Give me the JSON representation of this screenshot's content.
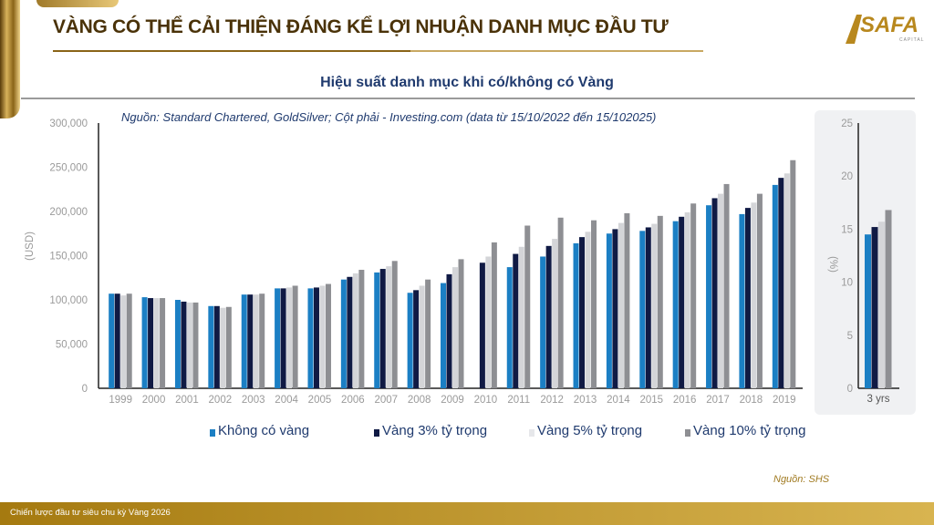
{
  "header": {
    "title": "VÀNG CÓ THỂ CẢI THIỆN ĐÁNG KỂ LỢI NHUẬN DANH MỤC ĐẦU TƯ",
    "logo_text": "SAFA",
    "logo_sub": "CAPITAL"
  },
  "subtitle": "Hiệu suất danh mục khi có/không có Vàng",
  "source_note": "Nguồn: Standard Chartered, GoldSilver; Cột phải - Investing.com (data từ 15/10/2022 đến 15/102025)",
  "footnote": "Nguồn: SHS",
  "footer": "Chiến lược đầu tư siêu chu kỳ Vàng 2026",
  "colors": [
    "#1b7fc4",
    "#101a44",
    "#d4d5d8",
    "#8e8f93"
  ],
  "chart_data": [
    {
      "type": "bar",
      "ylabel": "(USD)",
      "ylim": [
        0,
        300000
      ],
      "yticks": [
        "0",
        "50,000",
        "100,000",
        "150,000",
        "200,000",
        "250,000",
        "300,000"
      ],
      "categories": [
        "1999",
        "2000",
        "2001",
        "2002",
        "2003",
        "2004",
        "2005",
        "2006",
        "2007",
        "2008",
        "2009",
        "2010",
        "2011",
        "2012",
        "2013",
        "2014",
        "2015",
        "2016",
        "2017",
        "2018",
        "2019"
      ],
      "series": [
        {
          "name": "Không có vàng",
          "values": [
            107000,
            103000,
            100000,
            93000,
            106000,
            113000,
            113000,
            123000,
            131000,
            108000,
            119000,
            0,
            137000,
            149000,
            164000,
            175000,
            178000,
            189000,
            207000,
            197000,
            230000
          ]
        },
        {
          "name": "Vàng 3% tỷ trọng",
          "values": [
            107000,
            102000,
            98000,
            93000,
            106000,
            113000,
            114000,
            126000,
            135000,
            111000,
            129000,
            142000,
            152000,
            161000,
            171000,
            180000,
            182000,
            194000,
            215000,
            204000,
            238000
          ]
        },
        {
          "name": "Vàng 5% tỷ trọng",
          "values": [
            105000,
            102000,
            97000,
            91000,
            106000,
            114000,
            116000,
            130000,
            138000,
            116000,
            137000,
            149000,
            160000,
            169000,
            177000,
            187000,
            186000,
            199000,
            220000,
            210000,
            243000
          ]
        },
        {
          "name": "Vàng 10% tỷ trọng",
          "values": [
            107000,
            102000,
            97000,
            92000,
            107000,
            116000,
            118000,
            134000,
            144000,
            123000,
            146000,
            165000,
            184000,
            193000,
            190000,
            198000,
            195000,
            209000,
            231000,
            220000,
            258000
          ]
        }
      ],
      "legend": "bottom"
    },
    {
      "type": "bar",
      "ylabel": "(%)",
      "ylim": [
        0,
        25
      ],
      "yticks": [
        "0",
        "5",
        "10",
        "15",
        "20",
        "25"
      ],
      "categories": [
        "3 yrs"
      ],
      "series": [
        {
          "name": "Không có vàng",
          "values": [
            14.5
          ]
        },
        {
          "name": "Vàng 3% tỷ trọng",
          "values": [
            15.2
          ]
        },
        {
          "name": "Vàng 5% tỷ trọng",
          "values": [
            15.7
          ]
        },
        {
          "name": "Vàng 10% tỷ trọng",
          "values": [
            16.8
          ]
        }
      ]
    }
  ]
}
